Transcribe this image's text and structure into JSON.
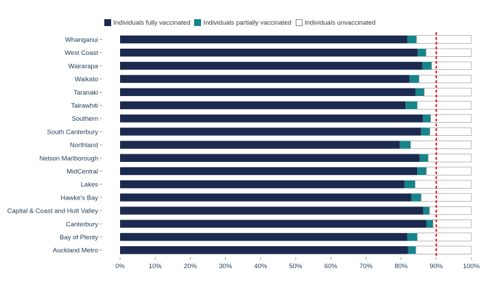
{
  "chart_data": {
    "type": "bar",
    "orientation": "horizontal",
    "stacked": true,
    "categories": [
      "Whanganui",
      "West Coast",
      "Wairarapa",
      "Waikato",
      "Taranaki",
      "Tairawhiti",
      "Southern",
      "South Canterbury",
      "Northland",
      "Nelson Marlborough",
      "MidCentral",
      "Lakes",
      "Hawke's Bay",
      "Capital & Coast and Hutt Valley",
      "Canterbury",
      "Bay of Plenty",
      "Auckland Metro"
    ],
    "series": [
      {
        "name": "Individuals fully vaccinated",
        "color": "#1b2a4e",
        "values": [
          81.8,
          84.7,
          86.1,
          82.4,
          84.1,
          81.3,
          86.2,
          85.7,
          79.6,
          85.3,
          84.6,
          81.0,
          82.9,
          86.3,
          87.2,
          81.8,
          82.0
        ]
      },
      {
        "name": "Individuals partially vaccinated",
        "color": "#17848a",
        "values": [
          2.6,
          2.4,
          2.6,
          2.7,
          2.5,
          3.3,
          2.2,
          2.5,
          3.1,
          2.4,
          2.6,
          3.0,
          2.8,
          1.8,
          1.9,
          2.8,
          2.2
        ]
      },
      {
        "name": "Individuals unvaccinated",
        "color": "#ffffff",
        "values": [
          15.6,
          12.9,
          11.3,
          14.9,
          13.4,
          15.4,
          11.6,
          11.8,
          17.3,
          12.3,
          12.8,
          16.0,
          14.3,
          11.9,
          10.9,
          15.4,
          15.8
        ]
      }
    ],
    "x_ticks": [
      "0%",
      "10%",
      "20%",
      "30%",
      "40%",
      "50%",
      "60%",
      "70%",
      "80%",
      "90%",
      "100%"
    ],
    "xlim": [
      0,
      100
    ],
    "reference_line": {
      "value": 90,
      "color": "#e8141c",
      "style": "dotted"
    },
    "legend_position": "top",
    "grid": false
  }
}
